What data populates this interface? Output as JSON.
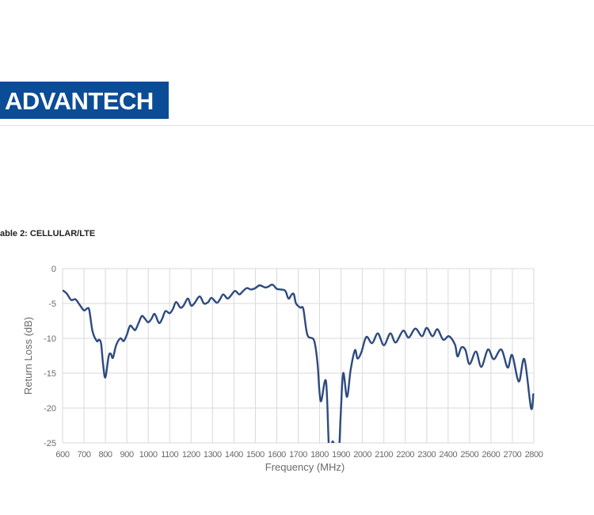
{
  "header": {
    "logo_text": "ADVANTECH",
    "logo_color": "#0b4c96"
  },
  "caption": "able 2: CELLULAR/LTE",
  "chart_data": {
    "type": "line",
    "title": "",
    "xlabel": "Frequency (MHz)",
    "ylabel": "Return Loss (dB)",
    "xlim": [
      600,
      2800
    ],
    "ylim": [
      -25,
      0
    ],
    "xticks": [
      600,
      700,
      800,
      900,
      1000,
      1100,
      1200,
      1300,
      1400,
      1500,
      1600,
      1700,
      1800,
      1900,
      2000,
      2100,
      2200,
      2300,
      2400,
      2500,
      2600,
      2700,
      2800
    ],
    "yticks": [
      0,
      -5,
      -10,
      -15,
      -20,
      -25
    ],
    "grid": true,
    "line_color": "#2e4a7f",
    "series": [
      {
        "x": [
          600,
          620,
          640,
          660,
          680,
          700,
          715,
          725,
          740,
          760,
          770,
          780,
          790,
          800,
          815,
          825,
          835,
          850,
          870,
          885,
          900,
          915,
          930,
          940,
          955,
          970,
          985,
          1000,
          1015,
          1030,
          1050,
          1065,
          1080,
          1100,
          1115,
          1130,
          1150,
          1165,
          1185,
          1200,
          1215,
          1240,
          1260,
          1280,
          1295,
          1320,
          1335,
          1350,
          1370,
          1385,
          1405,
          1425,
          1440,
          1460,
          1480,
          1500,
          1520,
          1545,
          1560,
          1580,
          1600,
          1620,
          1640,
          1655,
          1670,
          1680,
          1690,
          1710,
          1724,
          1743,
          1774,
          1790,
          1805,
          1830,
          1845,
          1860,
          1875,
          1890,
          1898,
          1910,
          1928,
          1945,
          1965,
          1977,
          1995,
          2018,
          2045,
          2072,
          2100,
          2130,
          2155,
          2190,
          2216,
          2247,
          2278,
          2300,
          2327,
          2350,
          2377,
          2404,
          2432,
          2444,
          2462,
          2481,
          2500,
          2530,
          2555,
          2586,
          2613,
          2648,
          2678,
          2699,
          2730,
          2756,
          2787,
          2798
        ],
        "y": [
          -3.1,
          -3.6,
          -4.5,
          -4.4,
          -5.2,
          -6.0,
          -5.7,
          -6.0,
          -9.0,
          -10.4,
          -10.2,
          -10.8,
          -14.0,
          -15.6,
          -12.6,
          -12.2,
          -12.8,
          -11.0,
          -10.0,
          -10.4,
          -9.5,
          -8.2,
          -8.6,
          -8.8,
          -7.8,
          -6.8,
          -7.2,
          -7.7,
          -7.2,
          -6.5,
          -7.8,
          -7.2,
          -6.1,
          -6.4,
          -5.8,
          -4.8,
          -5.6,
          -5.3,
          -4.3,
          -5.3,
          -5.0,
          -4.0,
          -5.0,
          -4.8,
          -4.2,
          -4.9,
          -4.4,
          -3.7,
          -4.3,
          -3.9,
          -3.2,
          -3.7,
          -3.3,
          -2.8,
          -3.0,
          -2.8,
          -2.4,
          -2.7,
          -2.6,
          -2.3,
          -2.9,
          -3.0,
          -3.2,
          -4.3,
          -3.7,
          -3.7,
          -5.0,
          -5.6,
          -5.8,
          -9.5,
          -10.3,
          -13.5,
          -19.0,
          -16.2,
          -26.5,
          -24.8,
          -25.8,
          -26.0,
          -21.3,
          -15.0,
          -18.4,
          -14.5,
          -11.7,
          -12.9,
          -12.0,
          -9.8,
          -10.7,
          -9.3,
          -11.0,
          -9.3,
          -10.6,
          -8.9,
          -9.9,
          -8.6,
          -9.7,
          -8.5,
          -9.7,
          -8.7,
          -10.2,
          -9.7,
          -10.9,
          -12.6,
          -11.3,
          -11.7,
          -13.7,
          -11.9,
          -14.1,
          -11.6,
          -13.0,
          -11.6,
          -14.2,
          -12.4,
          -16.2,
          -13.0,
          -20.0,
          -17.9
        ]
      }
    ]
  }
}
